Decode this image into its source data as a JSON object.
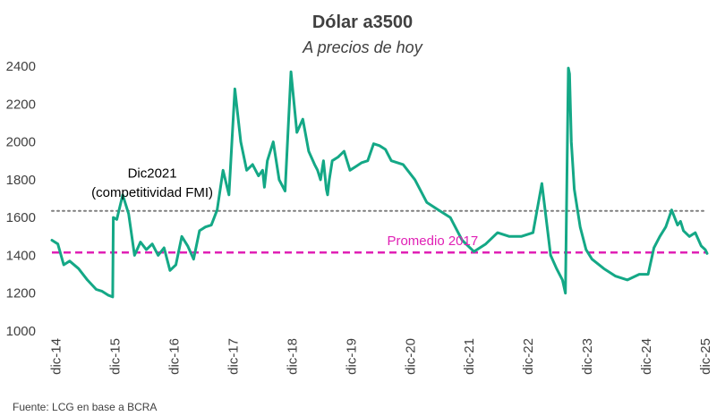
{
  "chart_data": {
    "type": "line",
    "title": "Dólar a3500",
    "subtitle": "A precios de hoy",
    "xlabel": "",
    "ylabel": "",
    "ylim": [
      1000,
      2400
    ],
    "yticks": [
      1000,
      1200,
      1400,
      1600,
      1800,
      2000,
      2200,
      2400
    ],
    "xlim": [
      2014.85,
      2025.95
    ],
    "xticks": [
      {
        "label": "dic-14",
        "x": 2014.92
      },
      {
        "label": "dic-15",
        "x": 2015.92
      },
      {
        "label": "dic-16",
        "x": 2016.92
      },
      {
        "label": "dic-17",
        "x": 2017.92
      },
      {
        "label": "dic-18",
        "x": 2018.92
      },
      {
        "label": "dic-19",
        "x": 2019.92
      },
      {
        "label": "dic-20",
        "x": 2020.92
      },
      {
        "label": "dic-21",
        "x": 2021.92
      },
      {
        "label": "dic-22",
        "x": 2022.92
      },
      {
        "label": "dic-23",
        "x": 2023.92
      },
      {
        "label": "dic-24",
        "x": 2024.92
      },
      {
        "label": "dic-25",
        "x": 2025.92
      }
    ],
    "series": [
      {
        "name": "Dólar a3500 a precios de hoy",
        "color": "#14A886",
        "x": [
          2014.85,
          2014.95,
          2015.05,
          2015.15,
          2015.3,
          2015.45,
          2015.6,
          2015.7,
          2015.8,
          2015.88,
          2015.89,
          2015.95,
          2016.05,
          2016.15,
          2016.25,
          2016.35,
          2016.45,
          2016.55,
          2016.65,
          2016.75,
          2016.85,
          2016.95,
          2017.05,
          2017.15,
          2017.25,
          2017.35,
          2017.45,
          2017.55,
          2017.65,
          2017.75,
          2017.85,
          2017.95,
          2018.05,
          2018.15,
          2018.25,
          2018.35,
          2018.42,
          2018.45,
          2018.5,
          2018.6,
          2018.7,
          2018.8,
          2018.9,
          2019.0,
          2019.1,
          2019.2,
          2019.3,
          2019.35,
          2019.4,
          2019.45,
          2019.5,
          2019.52,
          2019.55,
          2019.6,
          2019.7,
          2019.8,
          2019.9,
          2020.0,
          2020.1,
          2020.2,
          2020.3,
          2020.4,
          2020.5,
          2020.6,
          2020.8,
          2021.0,
          2021.2,
          2021.4,
          2021.6,
          2021.8,
          2022.0,
          2022.2,
          2022.4,
          2022.6,
          2022.8,
          2023.0,
          2023.15,
          2023.3,
          2023.4,
          2023.5,
          2023.55,
          2023.6,
          2023.62,
          2023.65,
          2023.68,
          2023.7,
          2023.75,
          2023.8,
          2023.9,
          2024.0,
          2024.2,
          2024.4,
          2024.6,
          2024.8,
          2024.95,
          2025.05,
          2025.15,
          2025.25,
          2025.35,
          2025.45,
          2025.5,
          2025.55,
          2025.65,
          2025.75,
          2025.85,
          2025.92,
          2025.95
        ],
        "values": [
          1480,
          1460,
          1350,
          1370,
          1330,
          1270,
          1220,
          1210,
          1190,
          1180,
          1600,
          1590,
          1720,
          1620,
          1400,
          1470,
          1430,
          1460,
          1400,
          1440,
          1320,
          1350,
          1500,
          1450,
          1380,
          1530,
          1550,
          1560,
          1640,
          1850,
          1720,
          2280,
          2000,
          1850,
          1880,
          1820,
          1850,
          1760,
          1900,
          2000,
          1800,
          1740,
          2370,
          2050,
          2120,
          1950,
          1880,
          1850,
          1800,
          1900,
          1750,
          1720,
          1800,
          1900,
          1920,
          1950,
          1850,
          1870,
          1890,
          1900,
          1990,
          1980,
          1960,
          1900,
          1880,
          1800,
          1680,
          1640,
          1600,
          1480,
          1420,
          1460,
          1520,
          1500,
          1500,
          1520,
          1780,
          1400,
          1330,
          1270,
          1200,
          2390,
          2360,
          2000,
          1850,
          1750,
          1650,
          1550,
          1430,
          1380,
          1330,
          1290,
          1270,
          1300,
          1300,
          1440,
          1500,
          1550,
          1640,
          1560,
          1580,
          1530,
          1500,
          1520,
          1450,
          1430,
          1410
        ]
      }
    ],
    "reference_lines": [
      {
        "name": "Dic2021 (competitividad FMI)",
        "value": 1635,
        "color": "#7F7F7F",
        "style": "dotted"
      },
      {
        "name": "Promedio 2017",
        "value": 1415,
        "color": "#E020B5",
        "style": "dashed"
      }
    ],
    "annotations": [
      {
        "text": "Dic2021",
        "x": 2016.55,
        "y": 1810,
        "color": "#000000"
      },
      {
        "text": "(competitividad FMI)",
        "x": 2016.55,
        "y": 1710,
        "color": "#000000"
      },
      {
        "text": "Promedio 2017",
        "x": 2021.3,
        "y": 1455,
        "color": "#E020B5"
      }
    ],
    "source": "Fuente: LCG  en base a BCRA"
  }
}
